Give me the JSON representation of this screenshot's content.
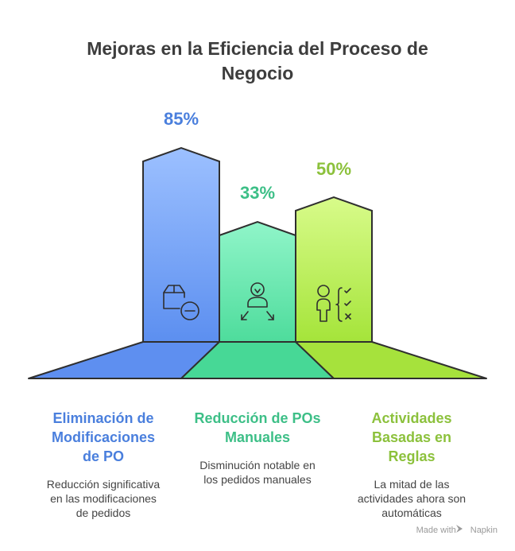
{
  "title_line1": "Mejoras en la Eficiencia del Proceso de",
  "title_line2": "Negocio",
  "items": [
    {
      "percent": "85%",
      "value": 85,
      "heading": [
        "Eliminación de",
        "Modificaciones",
        "de PO"
      ],
      "description": [
        "Reducción significativa",
        "en las modificaciones",
        "de pedidos"
      ],
      "color": "#4a7fdd",
      "icon": "package-minus-icon"
    },
    {
      "percent": "33%",
      "value": 33,
      "heading": [
        "Reducción de POs",
        "Manuales"
      ],
      "description": [
        "Disminución notable en",
        "los pedidos manuales"
      ],
      "color": "#3dbf87",
      "icon": "person-shrink-icon"
    },
    {
      "percent": "50%",
      "value": 50,
      "heading": [
        "Actividades",
        "Basadas en",
        "Reglas"
      ],
      "description": [
        "La mitad de las",
        "actividades ahora son",
        "automáticas"
      ],
      "color": "#8cc13c",
      "icon": "person-checklist-icon"
    }
  ],
  "footer": {
    "made_with": "Made with",
    "brand": "Napkin"
  }
}
